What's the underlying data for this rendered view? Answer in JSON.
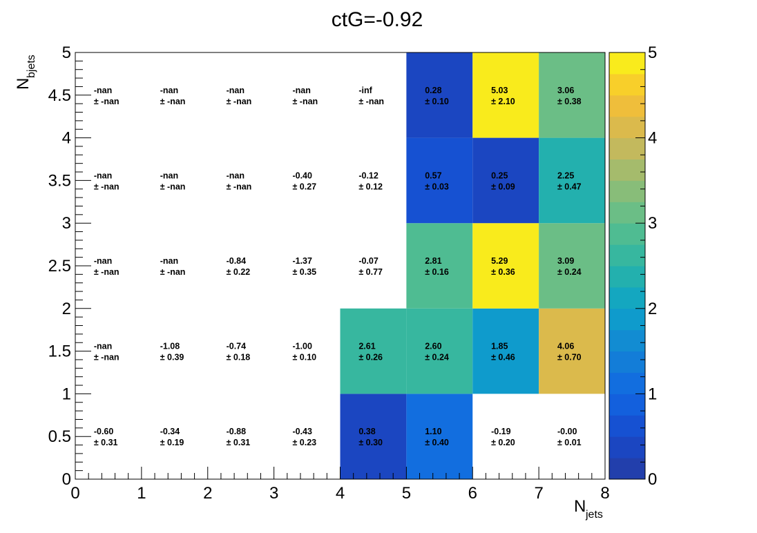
{
  "chart_data": {
    "type": "heatmap",
    "title": "ctG=-0.92",
    "xlabel": {
      "main": "N",
      "sub": "jets"
    },
    "ylabel": {
      "main": "N",
      "sub": "bjets"
    },
    "xlim": [
      0,
      8
    ],
    "ylim": [
      0,
      5
    ],
    "x_ticks": [
      "0",
      "1",
      "2",
      "3",
      "4",
      "5",
      "6",
      "7",
      "8"
    ],
    "y_ticks": [
      "0",
      "0.5",
      "1",
      "1.5",
      "2",
      "2.5",
      "3",
      "3.5",
      "4",
      "4.5",
      "5"
    ],
    "colorbar": {
      "range": [
        0,
        5
      ],
      "ticks": [
        "0",
        "1",
        "2",
        "3",
        "4",
        "5"
      ]
    },
    "x_bins": [
      [
        0,
        1
      ],
      [
        1,
        2
      ],
      [
        2,
        3
      ],
      [
        3,
        4
      ],
      [
        4,
        5
      ],
      [
        5,
        6
      ],
      [
        6,
        7
      ],
      [
        7,
        8
      ]
    ],
    "y_bins": [
      [
        0,
        1
      ],
      [
        1,
        2
      ],
      [
        2,
        3
      ],
      [
        3,
        4
      ],
      [
        4,
        5
      ]
    ],
    "cells": [
      {
        "row": 0,
        "col": 0,
        "value": -0.6,
        "label": "-0.60",
        "error": "± 0.31"
      },
      {
        "row": 0,
        "col": 1,
        "value": -0.34,
        "label": "-0.34",
        "error": "± 0.19"
      },
      {
        "row": 0,
        "col": 2,
        "value": -0.88,
        "label": "-0.88",
        "error": "± 0.31"
      },
      {
        "row": 0,
        "col": 3,
        "value": -0.43,
        "label": "-0.43",
        "error": "± 0.23"
      },
      {
        "row": 0,
        "col": 4,
        "value": 0.38,
        "label": "0.38",
        "error": "± 0.30"
      },
      {
        "row": 0,
        "col": 5,
        "value": 1.1,
        "label": "1.10",
        "error": "± 0.40"
      },
      {
        "row": 0,
        "col": 6,
        "value": -0.19,
        "label": "-0.19",
        "error": "± 0.20"
      },
      {
        "row": 0,
        "col": 7,
        "value": -0.0,
        "label": "-0.00",
        "error": "± 0.01"
      },
      {
        "row": 1,
        "col": 0,
        "value": null,
        "label": "-nan",
        "error": "± -nan"
      },
      {
        "row": 1,
        "col": 1,
        "value": -1.08,
        "label": "-1.08",
        "error": "± 0.39"
      },
      {
        "row": 1,
        "col": 2,
        "value": -0.74,
        "label": "-0.74",
        "error": "± 0.18"
      },
      {
        "row": 1,
        "col": 3,
        "value": -1.0,
        "label": "-1.00",
        "error": "± 0.10"
      },
      {
        "row": 1,
        "col": 4,
        "value": 2.61,
        "label": "2.61",
        "error": "± 0.26"
      },
      {
        "row": 1,
        "col": 5,
        "value": 2.6,
        "label": "2.60",
        "error": "± 0.24"
      },
      {
        "row": 1,
        "col": 6,
        "value": 1.85,
        "label": "1.85",
        "error": "± 0.46"
      },
      {
        "row": 1,
        "col": 7,
        "value": 4.06,
        "label": "4.06",
        "error": "± 0.70"
      },
      {
        "row": 2,
        "col": 0,
        "value": null,
        "label": "-nan",
        "error": "± -nan"
      },
      {
        "row": 2,
        "col": 1,
        "value": null,
        "label": "-nan",
        "error": "± -nan"
      },
      {
        "row": 2,
        "col": 2,
        "value": -0.84,
        "label": "-0.84",
        "error": "± 0.22"
      },
      {
        "row": 2,
        "col": 3,
        "value": -1.37,
        "label": "-1.37",
        "error": "± 0.35"
      },
      {
        "row": 2,
        "col": 4,
        "value": -0.07,
        "label": "-0.07",
        "error": "± 0.77"
      },
      {
        "row": 2,
        "col": 5,
        "value": 2.81,
        "label": "2.81",
        "error": "± 0.16"
      },
      {
        "row": 2,
        "col": 6,
        "value": 5.29,
        "label": "5.29",
        "error": "± 0.36"
      },
      {
        "row": 2,
        "col": 7,
        "value": 3.09,
        "label": "3.09",
        "error": "± 0.24"
      },
      {
        "row": 3,
        "col": 0,
        "value": null,
        "label": "-nan",
        "error": "± -nan"
      },
      {
        "row": 3,
        "col": 1,
        "value": null,
        "label": "-nan",
        "error": "± -nan"
      },
      {
        "row": 3,
        "col": 2,
        "value": null,
        "label": "-nan",
        "error": "± -nan"
      },
      {
        "row": 3,
        "col": 3,
        "value": -0.4,
        "label": "-0.40",
        "error": "± 0.27"
      },
      {
        "row": 3,
        "col": 4,
        "value": -0.12,
        "label": "-0.12",
        "error": "± 0.12"
      },
      {
        "row": 3,
        "col": 5,
        "value": 0.57,
        "label": "0.57",
        "error": "± 0.03"
      },
      {
        "row": 3,
        "col": 6,
        "value": 0.25,
        "label": "0.25",
        "error": "± 0.09"
      },
      {
        "row": 3,
        "col": 7,
        "value": 2.25,
        "label": "2.25",
        "error": "± 0.47"
      },
      {
        "row": 4,
        "col": 0,
        "value": null,
        "label": "-nan",
        "error": "± -nan"
      },
      {
        "row": 4,
        "col": 1,
        "value": null,
        "label": "-nan",
        "error": "± -nan"
      },
      {
        "row": 4,
        "col": 2,
        "value": null,
        "label": "-nan",
        "error": "± -nan"
      },
      {
        "row": 4,
        "col": 3,
        "value": null,
        "label": "-nan",
        "error": "± -nan"
      },
      {
        "row": 4,
        "col": 4,
        "value": null,
        "label": "-inf",
        "error": "± -nan"
      },
      {
        "row": 4,
        "col": 5,
        "value": 0.28,
        "label": "0.28",
        "error": "± 0.10"
      },
      {
        "row": 4,
        "col": 6,
        "value": 5.03,
        "label": "5.03",
        "error": "± 2.10"
      },
      {
        "row": 4,
        "col": 7,
        "value": 3.06,
        "label": "3.06",
        "error": "± 0.38"
      }
    ],
    "grid": false
  }
}
